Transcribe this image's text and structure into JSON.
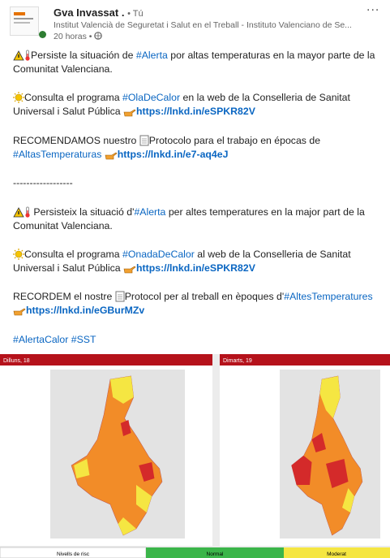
{
  "header": {
    "name": "Gva Invassat .",
    "relation": "• Tú",
    "org": "Institut Valencià de Seguretat i Salut en el Treball - Instituto Valenciano de Se...",
    "time": "20 horas •",
    "more": "..."
  },
  "paragraphs": [
    [
      "Persiste la situación de ",
      "#Alerta",
      " por altas temperaturas en la mayor parte de la Comunitat Valenciana."
    ],
    [
      "Consulta el programa ",
      "#OlaDeCalor",
      " en la web de la Conselleria de Sanitat Universal i Salut Pública ",
      "https://lnkd.in/eSPKR82V"
    ],
    [
      "RECOMENDAMOS nuestro ",
      "Protocolo para el trabajo en épocas de ",
      "#AltasTemperaturas",
      "https://lnkd.in/e7-aq4eJ"
    ],
    [
      "------------------"
    ],
    [
      "Persisteix la situació d'",
      "#Alerta",
      " per altes temperatures en la major part de la Comunitat Valenciana."
    ],
    [
      "Consulta el programa ",
      "#OnadaDeCalor",
      " al web de la Conselleria de Sanitat Universal i Salut Pública ",
      "https://lnkd.in/eSPKR82V"
    ],
    [
      "RECORDEM el nostre ",
      "Protocol per al treball en èpoques d'",
      "#AltesTemperatures",
      "https://lnkd.in/eGBurMZv"
    ],
    [
      "#AlertaCalor #SST"
    ]
  ],
  "image": {
    "maps": [
      "Dilluns, 18",
      "Dimarts, 19"
    ],
    "legend": [
      "Nivells de risc",
      "Normal",
      "Moderat"
    ]
  }
}
